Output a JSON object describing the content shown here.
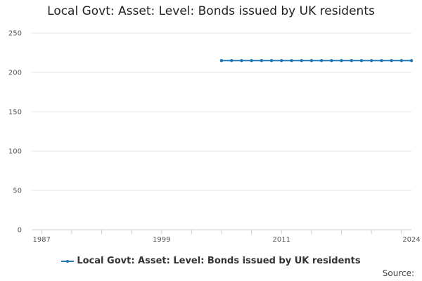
{
  "chart_data": {
    "type": "line",
    "title": "Local Govt: Asset: Level: Bonds issued by UK residents",
    "xlabel": "",
    "ylabel": "",
    "xlim": [
      1986,
      2024
    ],
    "ylim": [
      0,
      250
    ],
    "x_ticks": [
      "1987",
      "1999",
      "2011",
      "2024"
    ],
    "y_ticks": [
      "0",
      "50",
      "100",
      "150",
      "200",
      "250"
    ],
    "grid": "horizontal",
    "legend_position": "bottom",
    "series": [
      {
        "name": "Local Govt: Asset: Level: Bonds issued by UK residents",
        "color": "#1f77b4",
        "x": [
          2005,
          2006,
          2007,
          2008,
          2009,
          2010,
          2011,
          2012,
          2013,
          2014,
          2015,
          2016,
          2017,
          2018,
          2019,
          2020,
          2021,
          2022,
          2023,
          2024
        ],
        "values": [
          215,
          215,
          215,
          215,
          215,
          215,
          215,
          215,
          215,
          215,
          215,
          215,
          215,
          215,
          215,
          215,
          215,
          215,
          215,
          215
        ]
      }
    ]
  },
  "legend_label": "Local Govt: Asset: Level: Bonds issued by UK residents",
  "source_label": "Source:"
}
